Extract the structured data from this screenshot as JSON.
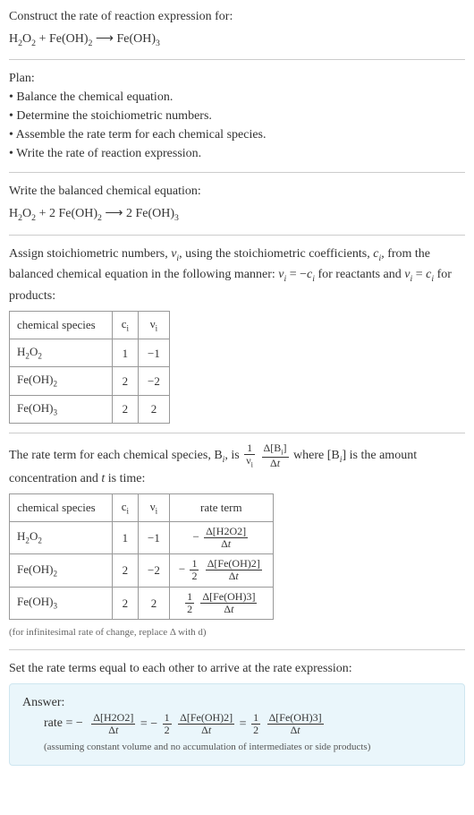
{
  "header": {
    "prompt": "Construct the rate of reaction expression for:"
  },
  "equations": {
    "unbalanced_html": "H<sub>2</sub>O<sub>2</sub> + Fe(OH)<sub>2</sub> ⟶ Fe(OH)<sub>3</sub>",
    "balanced_label": "Write the balanced chemical equation:",
    "balanced_html": "H<sub>2</sub>O<sub>2</sub> + 2 Fe(OH)<sub>2</sub> ⟶ 2 Fe(OH)<sub>3</sub>"
  },
  "plan": {
    "heading": "Plan:",
    "items": [
      "• Balance the chemical equation.",
      "• Determine the stoichiometric numbers.",
      "• Assemble the rate term for each chemical species.",
      "• Write the rate of reaction expression."
    ]
  },
  "stoich_text_html": "Assign stoichiometric numbers, <i>ν<sub>i</sub></i>, using the stoichiometric coefficients, <i>c<sub>i</sub></i>, from the balanced chemical equation in the following manner: <i>ν<sub>i</sub></i> = −<i>c<sub>i</sub></i> for reactants and <i>ν<sub>i</sub></i> = <i>c<sub>i</sub></i> for products:",
  "table1": {
    "headers": {
      "species": "chemical species",
      "ci": "c<sub>i</sub>",
      "vi": "ν<sub>i</sub>"
    },
    "rows": [
      {
        "species_html": "H<sub>2</sub>O<sub>2</sub>",
        "ci": "1",
        "vi": "−1"
      },
      {
        "species_html": "Fe(OH)<sub>2</sub>",
        "ci": "2",
        "vi": "−2"
      },
      {
        "species_html": "Fe(OH)<sub>3</sub>",
        "ci": "2",
        "vi": "2"
      }
    ]
  },
  "rate_text_pre": "The rate term for each chemical species, B<sub><i>i</i></sub>, is ",
  "rate_text_post_html": " where [B<sub><i>i</i></sub>] is the amount concentration and <i>t</i> is time:",
  "rate_frac1": {
    "num": "1",
    "den": "ν<sub>i</sub>"
  },
  "rate_frac2": {
    "num": "Δ[B<sub>i</sub>]",
    "den": "Δ<i>t</i>"
  },
  "table2": {
    "headers": {
      "species": "chemical species",
      "ci": "c<sub>i</sub>",
      "vi": "ν<sub>i</sub>",
      "rate": "rate term"
    },
    "rows": [
      {
        "species_html": "H<sub>2</sub>O<sub>2</sub>",
        "ci": "1",
        "vi": "−1",
        "rate_prefix": "−",
        "frac1": null,
        "frac2": {
          "num": "Δ[H2O2]",
          "den": "Δ<i>t</i>"
        }
      },
      {
        "species_html": "Fe(OH)<sub>2</sub>",
        "ci": "2",
        "vi": "−2",
        "rate_prefix": "−",
        "frac1": {
          "num": "1",
          "den": "2"
        },
        "frac2": {
          "num": "Δ[Fe(OH)2]",
          "den": "Δ<i>t</i>"
        }
      },
      {
        "species_html": "Fe(OH)<sub>3</sub>",
        "ci": "2",
        "vi": "2",
        "rate_prefix": "",
        "frac1": {
          "num": "1",
          "den": "2"
        },
        "frac2": {
          "num": "Δ[Fe(OH)3]",
          "den": "Δ<i>t</i>"
        }
      }
    ],
    "footnote": "(for infinitesimal rate of change, replace Δ with d)"
  },
  "final_text": "Set the rate terms equal to each other to arrive at the rate expression:",
  "answer": {
    "label": "Answer:",
    "rate_label": "rate = −",
    "term1": {
      "num": "Δ[H2O2]",
      "den": "Δ<i>t</i>"
    },
    "eq1": " = −",
    "half1": {
      "num": "1",
      "den": "2"
    },
    "term2": {
      "num": "Δ[Fe(OH)2]",
      "den": "Δ<i>t</i>"
    },
    "eq2": " = ",
    "half2": {
      "num": "1",
      "den": "2"
    },
    "term3": {
      "num": "Δ[Fe(OH)3]",
      "den": "Δ<i>t</i>"
    },
    "note": "(assuming constant volume and no accumulation of intermediates or side products)"
  },
  "colors": {
    "answer_bg": "#eaf6fb",
    "answer_border": "#cfe6f0",
    "hr": "#cccccc",
    "table_border": "#999999"
  }
}
